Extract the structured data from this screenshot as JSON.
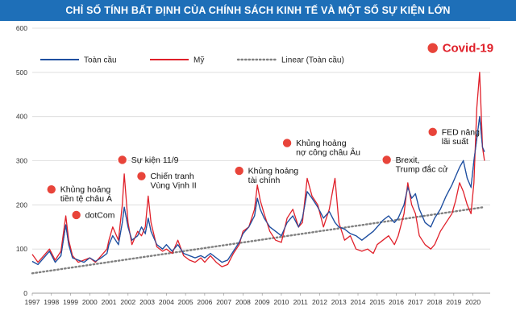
{
  "header": {
    "title": "CHỈ SỐ TÍNH BẤT ĐỊNH CỦA CHÍNH SÁCH KINH TẾ VÀ MỘT SỐ SỰ KIỆN LỚN"
  },
  "colors": {
    "title_bg": "#1e6fb8",
    "global": "#1f4fa0",
    "us": "#e0202a",
    "trend": "#808080",
    "marker": "#e8443a",
    "axis_text": "#333333"
  },
  "chart_data": {
    "type": "line",
    "title": "CHỈ SỐ TÍNH BẤT ĐỊNH CỦA CHÍNH SÁCH KINH TẾ VÀ MỘT SỐ SỰ KIỆN LỚN",
    "xlabel": "",
    "ylabel": "",
    "xlim": [
      1997,
      2020.9
    ],
    "ylim": [
      0,
      600
    ],
    "yticks": [
      "0",
      "100",
      "200",
      "300",
      "400",
      "500",
      "600"
    ],
    "xticks": [
      "1997",
      "1998",
      "1999",
      "2000",
      "2001",
      "2002",
      "2003",
      "2004",
      "2005",
      "2006",
      "2007",
      "2008",
      "2009",
      "2010",
      "2011",
      "2012",
      "2013",
      "2014",
      "2015",
      "2016",
      "2017",
      "2018",
      "2019",
      "2020"
    ],
    "legend": [
      "Toàn cầu",
      "Mỹ",
      "Linear (Toàn cầu)"
    ],
    "series": [
      {
        "name": "Toàn cầu",
        "points": [
          [
            1997.0,
            72
          ],
          [
            1997.3,
            65
          ],
          [
            1997.6,
            80
          ],
          [
            1997.9,
            95
          ],
          [
            1998.2,
            70
          ],
          [
            1998.5,
            85
          ],
          [
            1998.75,
            155
          ],
          [
            1998.9,
            110
          ],
          [
            1999.1,
            80
          ],
          [
            1999.4,
            75
          ],
          [
            1999.7,
            70
          ],
          [
            2000.0,
            80
          ],
          [
            2000.3,
            72
          ],
          [
            2000.6,
            80
          ],
          [
            2000.9,
            90
          ],
          [
            2001.0,
            110
          ],
          [
            2001.2,
            130
          ],
          [
            2001.5,
            110
          ],
          [
            2001.7,
            160
          ],
          [
            2001.8,
            195
          ],
          [
            2002.0,
            150
          ],
          [
            2002.2,
            120
          ],
          [
            2002.5,
            130
          ],
          [
            2002.7,
            150
          ],
          [
            2002.9,
            135
          ],
          [
            2003.05,
            170
          ],
          [
            2003.2,
            140
          ],
          [
            2003.5,
            110
          ],
          [
            2003.8,
            100
          ],
          [
            2004.0,
            110
          ],
          [
            2004.3,
            95
          ],
          [
            2004.6,
            110
          ],
          [
            2004.9,
            90
          ],
          [
            2005.2,
            85
          ],
          [
            2005.5,
            80
          ],
          [
            2005.8,
            85
          ],
          [
            2006.0,
            80
          ],
          [
            2006.3,
            90
          ],
          [
            2006.6,
            80
          ],
          [
            2006.9,
            70
          ],
          [
            2007.2,
            75
          ],
          [
            2007.5,
            95
          ],
          [
            2007.8,
            115
          ],
          [
            2008.0,
            135
          ],
          [
            2008.3,
            150
          ],
          [
            2008.6,
            175
          ],
          [
            2008.75,
            215
          ],
          [
            2008.9,
            190
          ],
          [
            2009.1,
            170
          ],
          [
            2009.4,
            150
          ],
          [
            2009.7,
            140
          ],
          [
            2010.0,
            130
          ],
          [
            2010.3,
            160
          ],
          [
            2010.6,
            175
          ],
          [
            2010.9,
            150
          ],
          [
            2011.1,
            170
          ],
          [
            2011.35,
            230
          ],
          [
            2011.6,
            215
          ],
          [
            2011.9,
            195
          ],
          [
            2012.2,
            170
          ],
          [
            2012.5,
            185
          ],
          [
            2012.8,
            160
          ],
          [
            2013.0,
            150
          ],
          [
            2013.3,
            145
          ],
          [
            2013.6,
            135
          ],
          [
            2013.9,
            130
          ],
          [
            2014.2,
            120
          ],
          [
            2014.5,
            130
          ],
          [
            2014.8,
            140
          ],
          [
            2015.0,
            150
          ],
          [
            2015.3,
            165
          ],
          [
            2015.6,
            175
          ],
          [
            2015.9,
            160
          ],
          [
            2016.1,
            170
          ],
          [
            2016.4,
            200
          ],
          [
            2016.6,
            240
          ],
          [
            2016.8,
            215
          ],
          [
            2017.0,
            225
          ],
          [
            2017.2,
            190
          ],
          [
            2017.5,
            160
          ],
          [
            2017.8,
            150
          ],
          [
            2018.0,
            170
          ],
          [
            2018.3,
            190
          ],
          [
            2018.6,
            220
          ],
          [
            2018.9,
            245
          ],
          [
            2019.1,
            265
          ],
          [
            2019.3,
            285
          ],
          [
            2019.5,
            300
          ],
          [
            2019.7,
            260
          ],
          [
            2019.9,
            240
          ],
          [
            2020.05,
            300
          ],
          [
            2020.2,
            350
          ],
          [
            2020.35,
            400
          ],
          [
            2020.5,
            330
          ],
          [
            2020.6,
            320
          ]
        ]
      },
      {
        "name": "Mỹ",
        "points": [
          [
            1997.0,
            88
          ],
          [
            1997.3,
            70
          ],
          [
            1997.6,
            85
          ],
          [
            1997.9,
            100
          ],
          [
            1998.2,
            75
          ],
          [
            1998.5,
            95
          ],
          [
            1998.75,
            175
          ],
          [
            1998.9,
            120
          ],
          [
            1999.1,
            85
          ],
          [
            1999.4,
            70
          ],
          [
            1999.7,
            75
          ],
          [
            2000.0,
            80
          ],
          [
            2000.3,
            70
          ],
          [
            2000.6,
            85
          ],
          [
            2000.9,
            100
          ],
          [
            2001.0,
            120
          ],
          [
            2001.2,
            150
          ],
          [
            2001.5,
            120
          ],
          [
            2001.7,
            200
          ],
          [
            2001.8,
            270
          ],
          [
            2002.0,
            160
          ],
          [
            2002.2,
            110
          ],
          [
            2002.5,
            140
          ],
          [
            2002.7,
            130
          ],
          [
            2002.9,
            150
          ],
          [
            2003.05,
            220
          ],
          [
            2003.2,
            160
          ],
          [
            2003.5,
            105
          ],
          [
            2003.8,
            95
          ],
          [
            2004.0,
            100
          ],
          [
            2004.3,
            90
          ],
          [
            2004.6,
            120
          ],
          [
            2004.9,
            85
          ],
          [
            2005.2,
            75
          ],
          [
            2005.5,
            70
          ],
          [
            2005.8,
            80
          ],
          [
            2006.0,
            70
          ],
          [
            2006.3,
            85
          ],
          [
            2006.6,
            70
          ],
          [
            2006.9,
            60
          ],
          [
            2007.2,
            65
          ],
          [
            2007.5,
            90
          ],
          [
            2007.8,
            110
          ],
          [
            2008.0,
            140
          ],
          [
            2008.3,
            150
          ],
          [
            2008.6,
            190
          ],
          [
            2008.75,
            245
          ],
          [
            2008.9,
            210
          ],
          [
            2009.1,
            180
          ],
          [
            2009.4,
            140
          ],
          [
            2009.7,
            120
          ],
          [
            2010.0,
            115
          ],
          [
            2010.3,
            170
          ],
          [
            2010.6,
            190
          ],
          [
            2010.9,
            150
          ],
          [
            2011.1,
            160
          ],
          [
            2011.35,
            260
          ],
          [
            2011.6,
            220
          ],
          [
            2011.9,
            200
          ],
          [
            2012.2,
            150
          ],
          [
            2012.5,
            190
          ],
          [
            2012.8,
            260
          ],
          [
            2013.0,
            160
          ],
          [
            2013.3,
            120
          ],
          [
            2013.6,
            130
          ],
          [
            2013.9,
            100
          ],
          [
            2014.2,
            95
          ],
          [
            2014.5,
            100
          ],
          [
            2014.8,
            90
          ],
          [
            2015.0,
            110
          ],
          [
            2015.3,
            120
          ],
          [
            2015.6,
            130
          ],
          [
            2015.9,
            110
          ],
          [
            2016.1,
            130
          ],
          [
            2016.4,
            180
          ],
          [
            2016.6,
            250
          ],
          [
            2016.8,
            200
          ],
          [
            2017.0,
            180
          ],
          [
            2017.2,
            130
          ],
          [
            2017.5,
            110
          ],
          [
            2017.8,
            100
          ],
          [
            2018.0,
            110
          ],
          [
            2018.3,
            140
          ],
          [
            2018.6,
            160
          ],
          [
            2018.9,
            180
          ],
          [
            2019.1,
            210
          ],
          [
            2019.3,
            250
          ],
          [
            2019.5,
            230
          ],
          [
            2019.7,
            200
          ],
          [
            2019.9,
            180
          ],
          [
            2020.05,
            250
          ],
          [
            2020.2,
            420
          ],
          [
            2020.35,
            500
          ],
          [
            2020.5,
            330
          ],
          [
            2020.6,
            300
          ]
        ]
      }
    ],
    "trendline": {
      "name": "Linear (Toàn cầu)",
      "points": [
        [
          1997.0,
          45
        ],
        [
          2020.6,
          195
        ]
      ]
    },
    "annotations": [
      {
        "x": 1998.0,
        "y": 235,
        "lines": [
          "Khủng hoảng",
          "tiền tệ châu Á"
        ]
      },
      {
        "x": 1999.3,
        "y": 177,
        "lines": [
          "dotCom"
        ]
      },
      {
        "x": 2001.7,
        "y": 302,
        "lines": [
          "Sự kiện 11/9"
        ]
      },
      {
        "x": 2002.7,
        "y": 265,
        "lines": [
          "Chiến tranh",
          "Vùng Vịnh II"
        ]
      },
      {
        "x": 2007.8,
        "y": 277,
        "lines": [
          "Khủng hoảng",
          "tài chính"
        ]
      },
      {
        "x": 2010.3,
        "y": 340,
        "lines": [
          "Khủng hoảng",
          "nợ công châu Âu"
        ]
      },
      {
        "x": 2015.5,
        "y": 302,
        "lines": [
          "Brexit,",
          "Trump đắc cử"
        ]
      },
      {
        "x": 2017.9,
        "y": 365,
        "lines": [
          "FED nâng",
          "lãi suất"
        ]
      },
      {
        "x": 2017.9,
        "y": 555,
        "lines": [
          "Covid-19"
        ],
        "big": true
      }
    ]
  }
}
